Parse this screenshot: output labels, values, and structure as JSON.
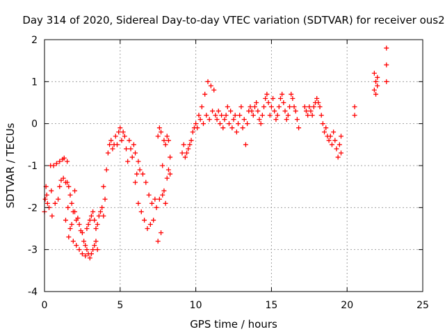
{
  "chart_data": {
    "type": "scatter",
    "title": "Day 314 of 2020, Sidereal Day-to-day VTEC variation (SDTVAR) for receiver ous2",
    "xlabel": "GPS time / hours",
    "ylabel": "SDTVAR / TECUs",
    "xlim": [
      0,
      25
    ],
    "ylim": [
      -4,
      2
    ],
    "x_ticks": [
      "0",
      "5",
      "10",
      "15",
      "20",
      "25"
    ],
    "y_ticks": [
      "-4",
      "-3",
      "-2",
      "-1",
      "0",
      "1",
      "2"
    ],
    "grid": true,
    "legend": "none",
    "marker": "+",
    "series_color": "#ff0000",
    "points": [
      [
        0.0,
        -2.1
      ],
      [
        0.05,
        -1.8
      ],
      [
        0.1,
        -1.5
      ],
      [
        0.15,
        -1.7
      ],
      [
        0.2,
        -1.9
      ],
      [
        0.3,
        -2.0
      ],
      [
        0.4,
        -1.0
      ],
      [
        0.45,
        -1.6
      ],
      [
        0.5,
        -2.2
      ],
      [
        0.6,
        -1.0
      ],
      [
        0.7,
        -1.9
      ],
      [
        0.8,
        -0.95
      ],
      [
        0.9,
        -1.8
      ],
      [
        1.0,
        -1.5
      ],
      [
        1.0,
        -0.9
      ],
      [
        1.1,
        -1.35
      ],
      [
        1.2,
        -0.85
      ],
      [
        1.25,
        -1.3
      ],
      [
        1.3,
        -0.82
      ],
      [
        1.4,
        -1.4
      ],
      [
        1.4,
        -2.3
      ],
      [
        1.5,
        -0.9
      ],
      [
        1.5,
        -1.4
      ],
      [
        1.55,
        -2.0
      ],
      [
        1.6,
        -1.5
      ],
      [
        1.6,
        -2.7
      ],
      [
        1.7,
        -1.7
      ],
      [
        1.7,
        -2.5
      ],
      [
        1.8,
        -1.9
      ],
      [
        1.8,
        -2.4
      ],
      [
        1.9,
        -2.1
      ],
      [
        1.9,
        -2.8
      ],
      [
        2.0,
        -2.1
      ],
      [
        2.0,
        -1.6
      ],
      [
        2.1,
        -2.3
      ],
      [
        2.1,
        -2.9
      ],
      [
        2.2,
        -2.25
      ],
      [
        2.3,
        -2.4
      ],
      [
        2.3,
        -3.0
      ],
      [
        2.4,
        -2.55
      ],
      [
        2.5,
        -2.6
      ],
      [
        2.5,
        -3.1
      ],
      [
        2.6,
        -2.8
      ],
      [
        2.7,
        -2.9
      ],
      [
        2.7,
        -3.15
      ],
      [
        2.8,
        -3.0
      ],
      [
        2.8,
        -2.5
      ],
      [
        2.9,
        -3.1
      ],
      [
        2.9,
        -2.4
      ],
      [
        3.0,
        -3.2
      ],
      [
        3.0,
        -2.3
      ],
      [
        3.1,
        -3.1
      ],
      [
        3.1,
        -2.2
      ],
      [
        3.2,
        -3.0
      ],
      [
        3.2,
        -2.1
      ],
      [
        3.3,
        -2.9
      ],
      [
        3.3,
        -2.3
      ],
      [
        3.4,
        -2.8
      ],
      [
        3.4,
        -2.5
      ],
      [
        3.5,
        -3.0
      ],
      [
        3.5,
        -2.4
      ],
      [
        3.6,
        -2.2
      ],
      [
        3.7,
        -2.1
      ],
      [
        3.8,
        -2.0
      ],
      [
        3.9,
        -1.5
      ],
      [
        3.9,
        -2.2
      ],
      [
        4.0,
        -1.8
      ],
      [
        4.1,
        -1.1
      ],
      [
        4.2,
        -0.7
      ],
      [
        4.3,
        -0.5
      ],
      [
        4.4,
        -0.4
      ],
      [
        4.5,
        -0.6
      ],
      [
        4.6,
        -0.5
      ],
      [
        4.7,
        -0.3
      ],
      [
        4.8,
        -0.5
      ],
      [
        4.9,
        -0.2
      ],
      [
        5.0,
        -0.1
      ],
      [
        5.1,
        -0.4
      ],
      [
        5.2,
        -0.2
      ],
      [
        5.3,
        -0.3
      ],
      [
        5.4,
        -0.6
      ],
      [
        5.5,
        -0.9
      ],
      [
        5.6,
        -0.4
      ],
      [
        5.7,
        -0.6
      ],
      [
        5.8,
        -0.8
      ],
      [
        5.9,
        -0.5
      ],
      [
        6.0,
        -0.7
      ],
      [
        6.0,
        -1.4
      ],
      [
        6.1,
        -1.2
      ],
      [
        6.2,
        -0.9
      ],
      [
        6.2,
        -1.9
      ],
      [
        6.3,
        -1.1
      ],
      [
        6.4,
        -2.1
      ],
      [
        6.5,
        -1.2
      ],
      [
        6.6,
        -2.3
      ],
      [
        6.7,
        -1.4
      ],
      [
        6.8,
        -2.5
      ],
      [
        6.9,
        -1.7
      ],
      [
        7.0,
        -2.4
      ],
      [
        7.1,
        -1.9
      ],
      [
        7.2,
        -2.3
      ],
      [
        7.3,
        -1.8
      ],
      [
        7.4,
        -2.0
      ],
      [
        7.5,
        -2.8
      ],
      [
        7.5,
        -0.3
      ],
      [
        7.6,
        -1.8
      ],
      [
        7.6,
        -0.1
      ],
      [
        7.7,
        -2.6
      ],
      [
        7.7,
        -0.2
      ],
      [
        7.8,
        -1.7
      ],
      [
        7.8,
        -1.0
      ],
      [
        7.9,
        -1.6
      ],
      [
        7.9,
        -0.4
      ],
      [
        8.0,
        -1.9
      ],
      [
        8.0,
        -0.5
      ],
      [
        8.1,
        -1.3
      ],
      [
        8.1,
        -0.3
      ],
      [
        8.2,
        -1.1
      ],
      [
        8.2,
        -0.4
      ],
      [
        8.3,
        -0.8
      ],
      [
        8.3,
        -1.2
      ],
      [
        9.1,
        -0.7
      ],
      [
        9.2,
        -0.5
      ],
      [
        9.3,
        -0.8
      ],
      [
        9.4,
        -0.7
      ],
      [
        9.5,
        -0.6
      ],
      [
        9.6,
        -0.5
      ],
      [
        9.7,
        -0.4
      ],
      [
        9.8,
        -0.2
      ],
      [
        9.9,
        -0.1
      ],
      [
        10.0,
        0.0
      ],
      [
        10.1,
        -0.1
      ],
      [
        10.2,
        0.2
      ],
      [
        10.3,
        0.1
      ],
      [
        10.4,
        0.4
      ],
      [
        10.5,
        0.0
      ],
      [
        10.6,
        0.7
      ],
      [
        10.7,
        0.2
      ],
      [
        10.8,
        1.0
      ],
      [
        10.9,
        0.1
      ],
      [
        11.0,
        0.9
      ],
      [
        11.1,
        0.3
      ],
      [
        11.2,
        0.8
      ],
      [
        11.3,
        0.2
      ],
      [
        11.4,
        0.1
      ],
      [
        11.5,
        0.3
      ],
      [
        11.6,
        0.0
      ],
      [
        11.7,
        0.2
      ],
      [
        11.8,
        -0.1
      ],
      [
        11.9,
        0.1
      ],
      [
        12.0,
        0.2
      ],
      [
        12.1,
        0.4
      ],
      [
        12.2,
        0.0
      ],
      [
        12.3,
        0.3
      ],
      [
        12.4,
        -0.1
      ],
      [
        12.5,
        0.1
      ],
      [
        12.6,
        0.2
      ],
      [
        12.7,
        -0.2
      ],
      [
        12.8,
        0.0
      ],
      [
        12.9,
        0.2
      ],
      [
        13.0,
        0.4
      ],
      [
        13.1,
        -0.1
      ],
      [
        13.2,
        0.1
      ],
      [
        13.3,
        -0.5
      ],
      [
        13.4,
        0.0
      ],
      [
        13.5,
        0.3
      ],
      [
        13.6,
        0.4
      ],
      [
        13.7,
        0.3
      ],
      [
        13.8,
        0.2
      ],
      [
        13.9,
        0.4
      ],
      [
        14.0,
        0.5
      ],
      [
        14.1,
        0.3
      ],
      [
        14.2,
        0.1
      ],
      [
        14.3,
        0.0
      ],
      [
        14.4,
        0.2
      ],
      [
        14.5,
        0.4
      ],
      [
        14.6,
        0.6
      ],
      [
        14.7,
        0.7
      ],
      [
        14.8,
        0.5
      ],
      [
        14.9,
        0.2
      ],
      [
        15.0,
        0.4
      ],
      [
        15.1,
        0.6
      ],
      [
        15.2,
        0.3
      ],
      [
        15.3,
        0.1
      ],
      [
        15.4,
        0.2
      ],
      [
        15.5,
        0.4
      ],
      [
        15.6,
        0.6
      ],
      [
        15.7,
        0.7
      ],
      [
        15.8,
        0.5
      ],
      [
        15.9,
        0.3
      ],
      [
        16.0,
        0.1
      ],
      [
        16.1,
        0.2
      ],
      [
        16.2,
        0.4
      ],
      [
        16.3,
        0.7
      ],
      [
        16.4,
        0.6
      ],
      [
        16.5,
        0.4
      ],
      [
        16.6,
        0.3
      ],
      [
        16.7,
        0.1
      ],
      [
        16.8,
        -0.1
      ],
      [
        17.2,
        0.4
      ],
      [
        17.3,
        0.3
      ],
      [
        17.4,
        0.2
      ],
      [
        17.5,
        0.4
      ],
      [
        17.6,
        0.3
      ],
      [
        17.7,
        0.2
      ],
      [
        17.8,
        0.4
      ],
      [
        17.9,
        0.5
      ],
      [
        18.0,
        0.6
      ],
      [
        18.1,
        0.5
      ],
      [
        18.2,
        0.4
      ],
      [
        18.3,
        0.2
      ],
      [
        18.4,
        0.0
      ],
      [
        18.5,
        -0.2
      ],
      [
        18.6,
        -0.1
      ],
      [
        18.7,
        -0.3
      ],
      [
        18.8,
        -0.4
      ],
      [
        18.9,
        -0.3
      ],
      [
        19.0,
        -0.5
      ],
      [
        19.1,
        -0.2
      ],
      [
        19.2,
        -0.4
      ],
      [
        19.3,
        -0.6
      ],
      [
        19.4,
        -0.8
      ],
      [
        19.5,
        -0.5
      ],
      [
        19.6,
        -0.7
      ],
      [
        19.6,
        -0.3
      ],
      [
        20.5,
        0.4
      ],
      [
        20.5,
        0.2
      ],
      [
        21.8,
        1.2
      ],
      [
        21.8,
        0.8
      ],
      [
        21.9,
        1.0
      ],
      [
        21.9,
        0.7
      ],
      [
        22.0,
        1.1
      ],
      [
        22.0,
        0.9
      ],
      [
        22.6,
        1.8
      ],
      [
        22.6,
        1.4
      ],
      [
        22.6,
        1.0
      ]
    ]
  }
}
